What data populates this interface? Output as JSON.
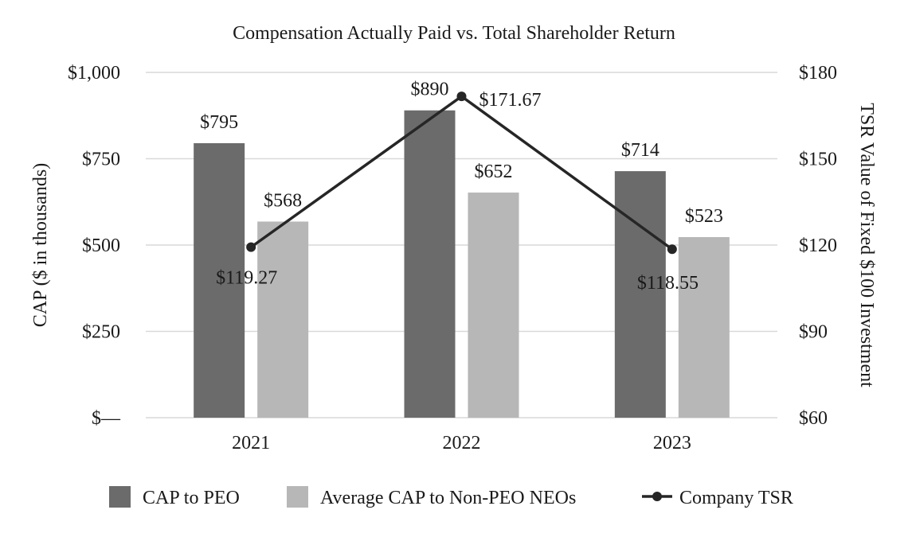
{
  "chart_data": {
    "type": "bar",
    "title": "Compensation Actually Paid vs. Total Shareholder Return",
    "categories": [
      "2021",
      "2022",
      "2023"
    ],
    "ylabel": "CAP ($ in thousands)",
    "y2label": "TSR Value of Fixed $100 Investment",
    "ylim": [
      0,
      1000
    ],
    "y2lim": [
      60,
      180
    ],
    "yticks": [
      {
        "value": 0,
        "label": "$—"
      },
      {
        "value": 250,
        "label": "$250"
      },
      {
        "value": 500,
        "label": "$500"
      },
      {
        "value": 750,
        "label": "$750"
      },
      {
        "value": 1000,
        "label": "$1,000"
      }
    ],
    "y2ticks": [
      {
        "value": 60,
        "label": "$60"
      },
      {
        "value": 90,
        "label": "$90"
      },
      {
        "value": 120,
        "label": "$120"
      },
      {
        "value": 150,
        "label": "$150"
      },
      {
        "value": 180,
        "label": "$180"
      }
    ],
    "grid": true,
    "legend_position": "bottom",
    "series": [
      {
        "name": "CAP to PEO",
        "kind": "bar",
        "axis": "left",
        "color": "#6b6b6b",
        "values": [
          795,
          890,
          714
        ],
        "labels": [
          "$795",
          "$890",
          "$714"
        ]
      },
      {
        "name": "Average CAP to Non-PEO NEOs",
        "kind": "bar",
        "axis": "left",
        "color": "#b7b7b7",
        "values": [
          568,
          652,
          523
        ],
        "labels": [
          "$568",
          "$652",
          "$523"
        ]
      },
      {
        "name": "Company TSR",
        "kind": "line",
        "axis": "right",
        "color": "#262626",
        "values": [
          119.27,
          171.67,
          118.55
        ],
        "labels": [
          "$119.27",
          "$171.67",
          "$118.55"
        ]
      }
    ]
  }
}
